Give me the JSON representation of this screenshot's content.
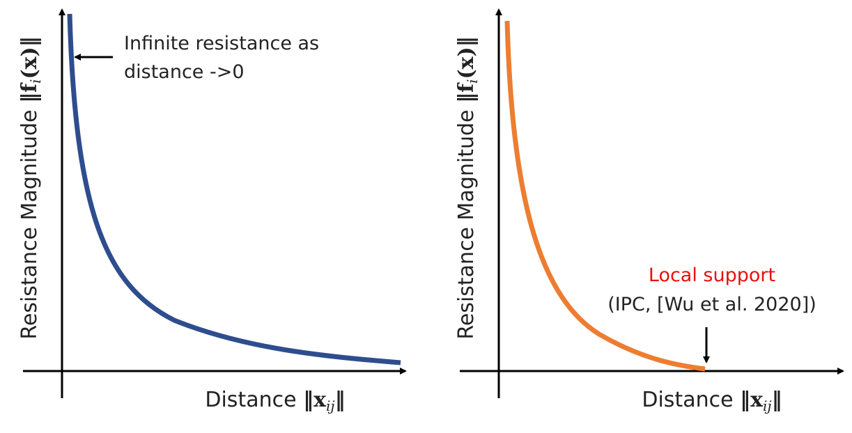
{
  "panels": [
    {
      "y_label": {
        "text": "Resistance Magnitude",
        "math": [
          "‖f",
          "i",
          "(x)‖"
        ]
      },
      "x_label": {
        "text": "Distance",
        "math": [
          "‖x",
          "ij",
          "‖"
        ]
      },
      "annotation": [
        "Infinite resistance as",
        "distance ->0"
      ]
    },
    {
      "y_label": {
        "text": "Resistance Magnitude",
        "math": [
          "‖f",
          "i",
          "(x)‖"
        ]
      },
      "x_label": {
        "text": "Distance",
        "math": [
          "‖x",
          "ij",
          "‖"
        ]
      },
      "annotation": [
        "Local support",
        "(IPC, [Wu et al. 2020])"
      ]
    }
  ]
}
